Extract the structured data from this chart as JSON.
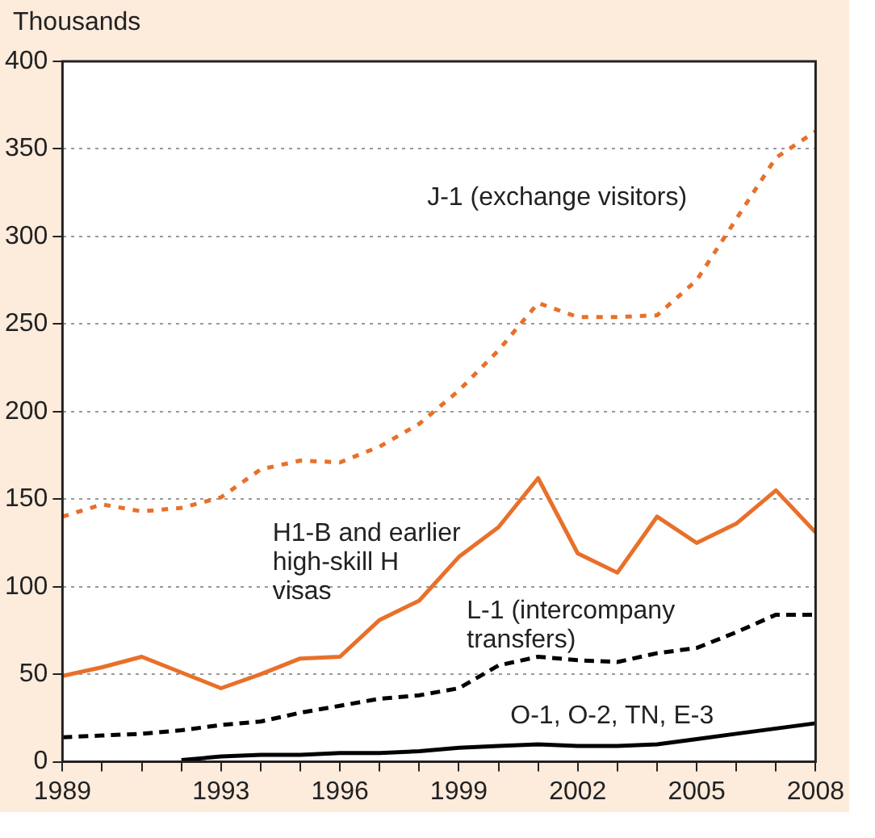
{
  "chart_data": {
    "type": "line",
    "ylabel": "Thousands",
    "x": [
      1989,
      1990,
      1991,
      1992,
      1993,
      1994,
      1995,
      1996,
      1997,
      1998,
      1999,
      2000,
      2001,
      2002,
      2003,
      2004,
      2005,
      2006,
      2007,
      2008
    ],
    "series": [
      {
        "name": "J-1 (exchange visitors)",
        "color": "#e8702a",
        "line_style": "dotted",
        "values": [
          140,
          147,
          143,
          145,
          151,
          167,
          172,
          171,
          180,
          193,
          212,
          235,
          262,
          254,
          254,
          255,
          275,
          310,
          345,
          360
        ]
      },
      {
        "name": "H1-B and earlier high-skill H visas",
        "color": "#e8702a",
        "line_style": "solid",
        "values": [
          49,
          54,
          60,
          51,
          42,
          50,
          59,
          60,
          81,
          92,
          117,
          134,
          162,
          119,
          108,
          140,
          125,
          136,
          155,
          131
        ]
      },
      {
        "name": "L-1 (intercompany transfers)",
        "color": "#000000",
        "line_style": "dashed",
        "values": [
          14,
          15,
          16,
          18,
          21,
          23,
          28,
          32,
          36,
          38,
          42,
          55,
          60,
          58,
          57,
          62,
          65,
          74,
          84,
          84
        ]
      },
      {
        "name": "O-1, O-2, TN, E-3",
        "color": "#000000",
        "line_style": "solid",
        "values": [
          null,
          null,
          null,
          1,
          3,
          4,
          4,
          5,
          5,
          6,
          8,
          9,
          10,
          9,
          9,
          10,
          13,
          16,
          19,
          22
        ]
      }
    ],
    "xlim": [
      1989,
      2008
    ],
    "xticks": [
      1989,
      {
        "value": 1990,
        "label": null
      },
      {
        "value": 1991,
        "label": null
      },
      {
        "value": 1992,
        "label": null
      },
      1993,
      {
        "value": 1994,
        "label": null
      },
      {
        "value": 1995,
        "label": null
      },
      1996,
      {
        "value": 1997,
        "label": null
      },
      {
        "value": 1998,
        "label": null
      },
      1999,
      {
        "value": 2000,
        "label": null
      },
      {
        "value": 2001,
        "label": null
      },
      2002,
      {
        "value": 2003,
        "label": null
      },
      {
        "value": 2004,
        "label": null
      },
      2005,
      {
        "value": 2006,
        "label": null
      },
      {
        "value": 2007,
        "label": null
      },
      2008
    ],
    "ylim": [
      0,
      400
    ],
    "yticks": [
      0,
      50,
      100,
      150,
      200,
      250,
      300,
      350,
      400
    ],
    "grid": "y",
    "legend": false,
    "marker": "none"
  }
}
